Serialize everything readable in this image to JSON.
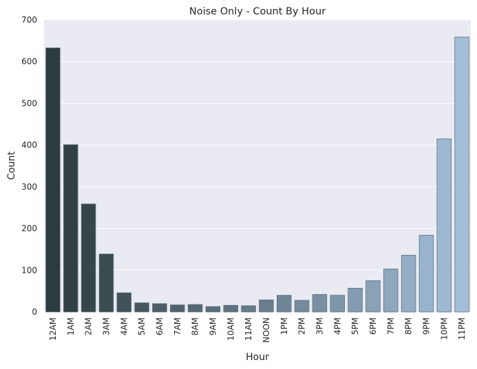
{
  "chart_data": {
    "type": "bar",
    "title": "Noise Only - Count By Hour",
    "xlabel": "Hour",
    "ylabel": "Count",
    "ylim": [
      0,
      700
    ],
    "yticks": [
      0,
      100,
      200,
      300,
      400,
      500,
      600,
      700
    ],
    "grid": true,
    "categories": [
      "12AM",
      "1AM",
      "2AM",
      "3AM",
      "4AM",
      "5AM",
      "6AM",
      "7AM",
      "8AM",
      "9AM",
      "10AM",
      "11AM",
      "NOON",
      "1PM",
      "2PM",
      "3PM",
      "4PM",
      "5PM",
      "6PM",
      "7PM",
      "8PM",
      "9PM",
      "10PM",
      "11PM"
    ],
    "values": [
      633,
      401,
      259,
      139,
      46,
      22,
      20,
      17,
      18,
      13,
      16,
      15,
      29,
      40,
      28,
      42,
      40,
      57,
      75,
      103,
      136,
      184,
      415,
      659
    ],
    "colors": {
      "background": "#EAEAF2",
      "grid": "#FFFFFF",
      "bar_start": "#2C3B3D",
      "bar_end": "#A2BED8",
      "bar_edge": "#5A7480"
    }
  }
}
